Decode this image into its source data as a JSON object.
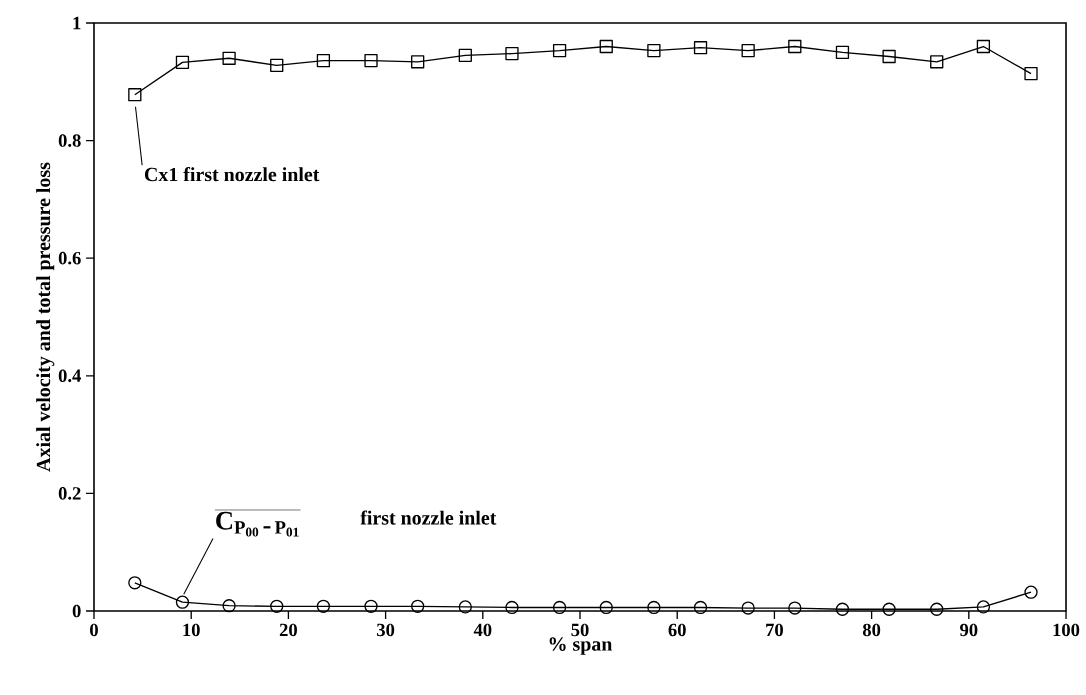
{
  "chart_data": {
    "type": "line",
    "xlabel": "% span",
    "ylabel": "Axial velocity and total pressure loss",
    "x": [
      4.2,
      9.1,
      13.9,
      18.8,
      23.6,
      28.5,
      33.3,
      38.2,
      43.0,
      47.9,
      52.7,
      57.6,
      62.4,
      67.3,
      72.1,
      77.0,
      81.8,
      86.7,
      91.5,
      96.4
    ],
    "series": [
      {
        "color": "#000000",
        "marker": "square",
        "values": [
          0.878,
          0.933,
          0.94,
          0.928,
          0.936,
          0.936,
          0.934,
          0.945,
          0.948,
          0.953,
          0.96,
          0.953,
          0.958,
          0.953,
          0.96,
          0.95,
          0.943,
          0.934,
          0.96,
          0.914
        ]
      },
      {
        "color": "#000000",
        "marker": "circle",
        "values": [
          0.048,
          0.015,
          0.009,
          0.008,
          0.008,
          0.008,
          0.008,
          0.007,
          0.006,
          0.006,
          0.006,
          0.006,
          0.006,
          0.005,
          0.005,
          0.003,
          0.003,
          0.003,
          0.007,
          0.032
        ]
      }
    ],
    "xlim": [
      0,
      100
    ],
    "xticks": [
      0,
      10,
      20,
      30,
      40,
      50,
      60,
      70,
      80,
      90,
      100
    ],
    "ylim": [
      0,
      1
    ],
    "yticks": [
      0,
      0.2,
      0.4,
      0.6,
      0.8,
      1
    ],
    "line_style": "solid",
    "annotations": [
      "Cx1  first nozzle inlet",
      {
        "text": "\\overline{\\mathbf{C}_{\\mathbf{P}_{\\mathbf{00}}\\,\\mbox{-}\\,\\mathbf{P}_{\\mathbf{01}}}}",
        "x": 9.1,
        "y": 0.015
      },
      "first nozzle inlet"
    ]
  }
}
